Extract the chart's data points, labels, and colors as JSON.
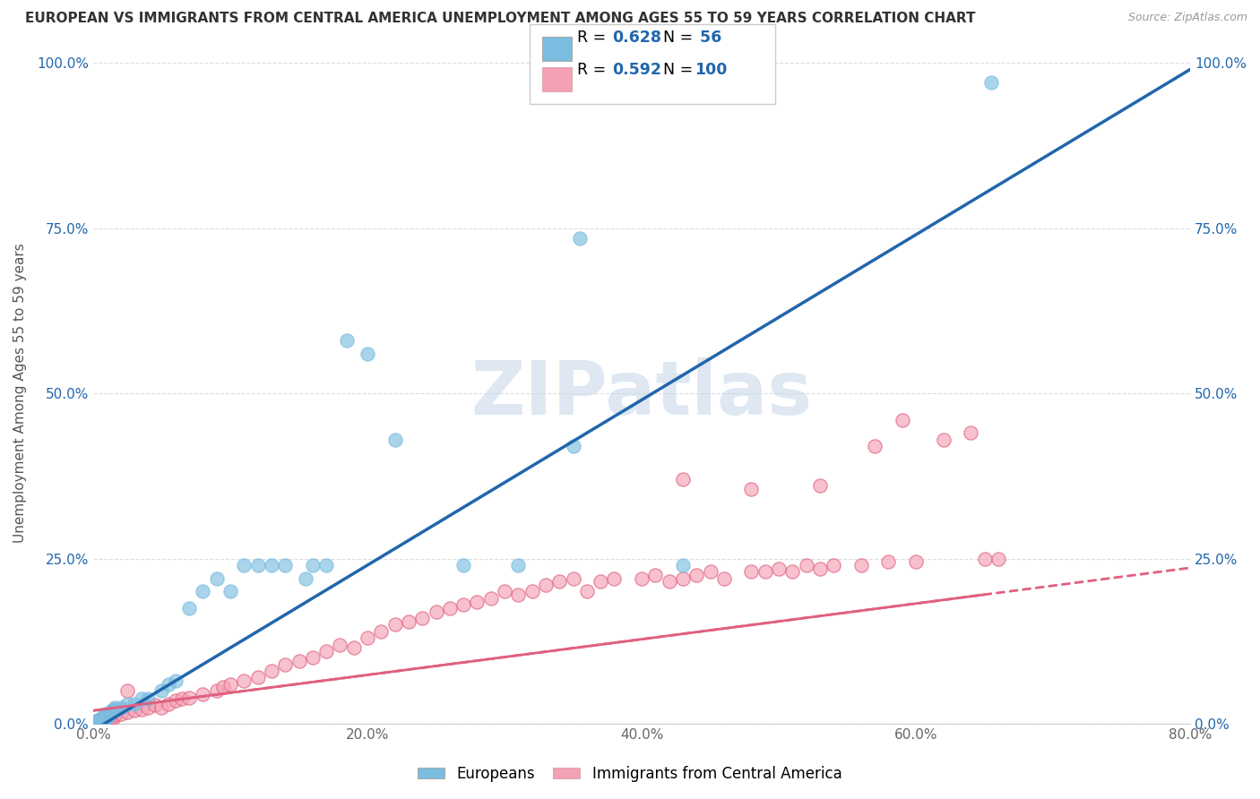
{
  "title": "EUROPEAN VS IMMIGRANTS FROM CENTRAL AMERICA UNEMPLOYMENT AMONG AGES 55 TO 59 YEARS CORRELATION CHART",
  "source": "Source: ZipAtlas.com",
  "ylabel": "Unemployment Among Ages 55 to 59 years",
  "xlim": [
    0.0,
    0.8
  ],
  "ylim": [
    0.0,
    1.0
  ],
  "xticks": [
    0.0,
    0.2,
    0.4,
    0.6,
    0.8
  ],
  "xticklabels": [
    "0.0%",
    "20.0%",
    "40.0%",
    "60.0%",
    "80.0%"
  ],
  "yticks": [
    0.0,
    0.25,
    0.5,
    0.75,
    1.0
  ],
  "yticklabels": [
    "0.0%",
    "25.0%",
    "50.0%",
    "75.0%",
    "100.0%"
  ],
  "european_color": "#7bbde0",
  "central_america_color": "#f4a0b5",
  "european_line_color": "#2166ac",
  "central_america_line_color": "#e06080",
  "R_european": 0.628,
  "N_european": 56,
  "R_central": 0.592,
  "N_central": 100,
  "eu_line_slope": 1.25,
  "eu_line_intercept": -0.01,
  "ca_line_slope": 0.27,
  "ca_line_intercept": 0.02,
  "watermark": "ZIPatlas",
  "watermark_color": "#c8d8ea",
  "background_color": "#ffffff",
  "grid_color": "#dddddd"
}
